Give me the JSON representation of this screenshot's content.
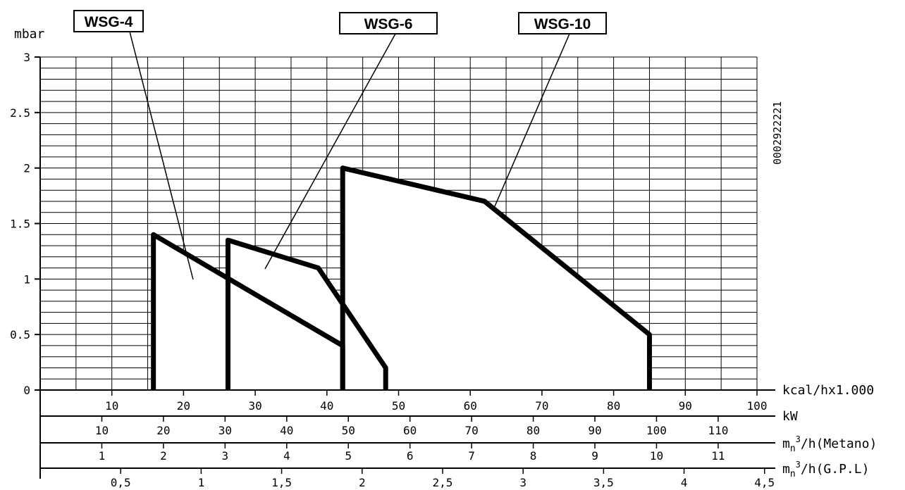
{
  "chart_data": {
    "type": "line",
    "y_unit": "mbar",
    "ylim": [
      0,
      3
    ],
    "y_ticks": [
      "0",
      "0.5",
      "1",
      "1.5",
      "2",
      "2.5",
      "3"
    ],
    "x_primary": {
      "unit": "kcal/hx1.000",
      "range": [
        0,
        100
      ],
      "ticks": [
        10,
        20,
        30,
        40,
        50,
        60,
        70,
        80,
        90,
        100
      ],
      "tick_labels": [
        "10",
        "20",
        "30",
        "40",
        "50",
        "60",
        "70",
        "80",
        "90",
        "100"
      ]
    },
    "secondary_axes": [
      {
        "unit": "kW",
        "ticks": [
          10,
          20,
          30,
          40,
          50,
          60,
          70,
          80,
          90,
          100,
          110
        ],
        "tick_labels": [
          "10",
          "20",
          "30",
          "40",
          "50",
          "60",
          "70",
          "80",
          "90",
          "100",
          "110"
        ]
      },
      {
        "unit": "mn3/h(Metano)",
        "unit_base": "m",
        "unit_sub": "n",
        "unit_sup": "3",
        "unit_rest": "/h(Metano)",
        "ticks": [
          1,
          2,
          3,
          4,
          5,
          6,
          7,
          8,
          9,
          10,
          11
        ],
        "tick_labels": [
          "1",
          "2",
          "3",
          "4",
          "5",
          "6",
          "7",
          "8",
          "9",
          "10",
          "11"
        ]
      },
      {
        "unit": "mn3/h(G.P.L)",
        "unit_base": "m",
        "unit_sub": "n",
        "unit_sup": "3",
        "unit_rest": "/h(G.P.L)",
        "ticks": [
          0.5,
          1,
          1.5,
          2,
          2.5,
          3,
          3.5,
          4,
          4.5
        ],
        "tick_labels": [
          "0,5",
          "1",
          "1,5",
          "2",
          "2,5",
          "3",
          "3,5",
          "4",
          "4,5"
        ]
      }
    ],
    "series": [
      {
        "name": "WSG-4",
        "points": [
          [
            15.8,
            0
          ],
          [
            15.8,
            1.4
          ],
          [
            42.2,
            0.4
          ],
          [
            42.2,
            0
          ]
        ]
      },
      {
        "name": "WSG-6",
        "points": [
          [
            26.2,
            0
          ],
          [
            26.2,
            1.35
          ],
          [
            38.8,
            1.1
          ],
          [
            48.2,
            0.2
          ],
          [
            48.2,
            0
          ]
        ]
      },
      {
        "name": "WSG-10",
        "points": [
          [
            42.2,
            0
          ],
          [
            42.2,
            2.0
          ],
          [
            62,
            1.7
          ],
          [
            85,
            0.5
          ],
          [
            85,
            0
          ]
        ]
      }
    ],
    "grid": true,
    "diagram_code": "0002922221"
  },
  "colors": {
    "line": "#000000",
    "background": "#ffffff"
  }
}
